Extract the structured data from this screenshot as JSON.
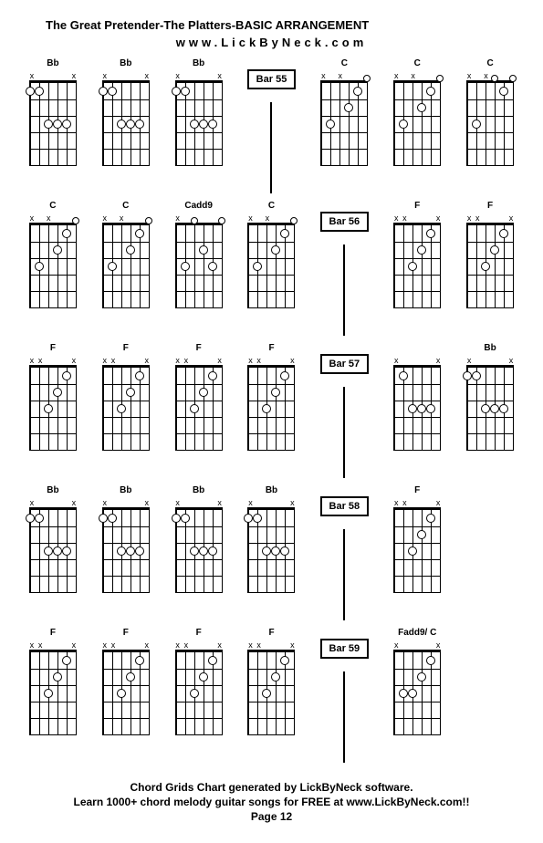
{
  "title": "The Great Pretender-The Platters-BASIC ARRANGEMENT",
  "url": "www.LickByNeck.com",
  "footer1": "Chord Grids Chart generated by LickByNeck software.",
  "footer2": "Learn 1000+ chord melody guitar songs for FREE at www.LickByNeck.com!!",
  "page": "Page 12",
  "rows": [
    {
      "bar": "Bar 55",
      "barCol": 3,
      "cells": [
        {
          "type": "chord",
          "label": "Bb",
          "muted": [
            "x",
            "",
            "",
            "",
            "",
            "x"
          ],
          "fingers": [
            {
              "s": 1,
              "f": 1
            },
            {
              "s": 0,
              "f": 1
            },
            {
              "s": 2,
              "f": 3
            },
            {
              "s": 3,
              "f": 3
            },
            {
              "s": 4,
              "f": 3
            }
          ]
        },
        {
          "type": "chord",
          "label": "Bb",
          "muted": [
            "x",
            "",
            "",
            "",
            "",
            "x"
          ],
          "fingers": [
            {
              "s": 1,
              "f": 1
            },
            {
              "s": 0,
              "f": 1
            },
            {
              "s": 2,
              "f": 3
            },
            {
              "s": 3,
              "f": 3
            },
            {
              "s": 4,
              "f": 3
            }
          ]
        },
        {
          "type": "chord",
          "label": "Bb",
          "muted": [
            "x",
            "",
            "",
            "",
            "",
            "x"
          ],
          "fingers": [
            {
              "s": 1,
              "f": 1
            },
            {
              "s": 0,
              "f": 1
            },
            {
              "s": 2,
              "f": 3
            },
            {
              "s": 3,
              "f": 3
            },
            {
              "s": 4,
              "f": 3
            }
          ]
        },
        {
          "type": "bar"
        },
        {
          "type": "chord",
          "label": "C",
          "muted": [
            "x",
            "",
            "x",
            "",
            "",
            ""
          ],
          "fingers": [
            {
              "s": 4,
              "f": 1
            },
            {
              "s": 3,
              "f": 2
            },
            {
              "s": 1,
              "f": 3
            }
          ],
          "opens": [
            5
          ]
        },
        {
          "type": "chord",
          "label": "C",
          "muted": [
            "x",
            "",
            "x",
            "",
            "",
            ""
          ],
          "fingers": [
            {
              "s": 4,
              "f": 1
            },
            {
              "s": 3,
              "f": 2
            },
            {
              "s": 1,
              "f": 3
            }
          ],
          "opens": [
            5
          ]
        },
        {
          "type": "chord",
          "label": "C",
          "muted": [
            "x",
            "",
            "x",
            "",
            "",
            ""
          ],
          "fingers": [
            {
              "s": 4,
              "f": 1
            },
            {
              "s": 1,
              "f": 3
            }
          ],
          "opens": [
            3,
            5
          ]
        }
      ]
    },
    {
      "bar": "Bar 56",
      "barCol": 4,
      "cells": [
        {
          "type": "chord",
          "label": "C",
          "muted": [
            "x",
            "",
            "x",
            "",
            "",
            ""
          ],
          "fingers": [
            {
              "s": 4,
              "f": 1
            },
            {
              "s": 3,
              "f": 2
            },
            {
              "s": 1,
              "f": 3
            }
          ],
          "opens": [
            5
          ]
        },
        {
          "type": "chord",
          "label": "C",
          "muted": [
            "x",
            "",
            "x",
            "",
            "",
            ""
          ],
          "fingers": [
            {
              "s": 4,
              "f": 1
            },
            {
              "s": 3,
              "f": 2
            },
            {
              "s": 1,
              "f": 3
            }
          ],
          "opens": [
            5
          ]
        },
        {
          "type": "chord",
          "label": "Cadd9",
          "muted": [
            "x",
            "",
            "",
            "",
            "",
            ""
          ],
          "fingers": [
            {
              "s": 3,
              "f": 2
            },
            {
              "s": 1,
              "f": 3
            },
            {
              "s": 4,
              "f": 3
            }
          ],
          "opens": [
            2,
            5
          ]
        },
        {
          "type": "chord",
          "label": "C",
          "muted": [
            "x",
            "",
            "x",
            "",
            "",
            ""
          ],
          "fingers": [
            {
              "s": 4,
              "f": 1
            },
            {
              "s": 3,
              "f": 2
            },
            {
              "s": 1,
              "f": 3
            }
          ],
          "opens": [
            5
          ]
        },
        {
          "type": "bar"
        },
        {
          "type": "chord",
          "label": "F",
          "muted": [
            "x",
            "x",
            "",
            "",
            "",
            "x"
          ],
          "fingers": [
            {
              "s": 4,
              "f": 1
            },
            {
              "s": 3,
              "f": 2
            },
            {
              "s": 2,
              "f": 3
            }
          ]
        },
        {
          "type": "chord",
          "label": "F",
          "muted": [
            "x",
            "x",
            "",
            "",
            "",
            "x"
          ],
          "fingers": [
            {
              "s": 4,
              "f": 1
            },
            {
              "s": 3,
              "f": 2
            },
            {
              "s": 2,
              "f": 3
            }
          ]
        }
      ]
    },
    {
      "bar": "Bar 57",
      "barCol": 4,
      "cells": [
        {
          "type": "chord",
          "label": "F",
          "muted": [
            "x",
            "x",
            "",
            "",
            "",
            "x"
          ],
          "fingers": [
            {
              "s": 4,
              "f": 1
            },
            {
              "s": 3,
              "f": 2
            },
            {
              "s": 2,
              "f": 3
            }
          ]
        },
        {
          "type": "chord",
          "label": "F",
          "muted": [
            "x",
            "x",
            "",
            "",
            "",
            "x"
          ],
          "fingers": [
            {
              "s": 4,
              "f": 1
            },
            {
              "s": 3,
              "f": 2
            },
            {
              "s": 2,
              "f": 3
            }
          ]
        },
        {
          "type": "chord",
          "label": "F",
          "muted": [
            "x",
            "x",
            "",
            "",
            "",
            "x"
          ],
          "fingers": [
            {
              "s": 4,
              "f": 1
            },
            {
              "s": 3,
              "f": 2
            },
            {
              "s": 2,
              "f": 3
            }
          ]
        },
        {
          "type": "chord",
          "label": "F",
          "muted": [
            "x",
            "x",
            "",
            "",
            "",
            "x"
          ],
          "fingers": [
            {
              "s": 4,
              "f": 1
            },
            {
              "s": 3,
              "f": 2
            },
            {
              "s": 2,
              "f": 3
            }
          ]
        },
        {
          "type": "bar"
        },
        {
          "type": "chord",
          "label": "",
          "muted": [
            "x",
            "",
            "",
            "",
            "",
            "x"
          ],
          "fingers": [
            {
              "s": 1,
              "f": 1
            },
            {
              "s": 2,
              "f": 3
            },
            {
              "s": 3,
              "f": 3
            },
            {
              "s": 4,
              "f": 3
            }
          ]
        },
        {
          "type": "chord",
          "label": "Bb",
          "muted": [
            "x",
            "",
            "",
            "",
            "",
            "x"
          ],
          "fingers": [
            {
              "s": 1,
              "f": 1
            },
            {
              "s": 0,
              "f": 1
            },
            {
              "s": 2,
              "f": 3
            },
            {
              "s": 3,
              "f": 3
            },
            {
              "s": 4,
              "f": 3
            }
          ]
        }
      ]
    },
    {
      "bar": "Bar 58",
      "barCol": 4,
      "cells": [
        {
          "type": "chord",
          "label": "Bb",
          "muted": [
            "x",
            "",
            "",
            "",
            "",
            "x"
          ],
          "fingers": [
            {
              "s": 1,
              "f": 1
            },
            {
              "s": 0,
              "f": 1
            },
            {
              "s": 2,
              "f": 3
            },
            {
              "s": 3,
              "f": 3
            },
            {
              "s": 4,
              "f": 3
            }
          ]
        },
        {
          "type": "chord",
          "label": "Bb",
          "muted": [
            "x",
            "",
            "",
            "",
            "",
            "x"
          ],
          "fingers": [
            {
              "s": 1,
              "f": 1
            },
            {
              "s": 0,
              "f": 1
            },
            {
              "s": 2,
              "f": 3
            },
            {
              "s": 3,
              "f": 3
            },
            {
              "s": 4,
              "f": 3
            }
          ]
        },
        {
          "type": "chord",
          "label": "Bb",
          "muted": [
            "x",
            "",
            "",
            "",
            "",
            "x"
          ],
          "fingers": [
            {
              "s": 1,
              "f": 1
            },
            {
              "s": 0,
              "f": 1
            },
            {
              "s": 2,
              "f": 3
            },
            {
              "s": 3,
              "f": 3
            },
            {
              "s": 4,
              "f": 3
            }
          ]
        },
        {
          "type": "chord",
          "label": "Bb",
          "muted": [
            "x",
            "",
            "",
            "",
            "",
            "x"
          ],
          "fingers": [
            {
              "s": 1,
              "f": 1
            },
            {
              "s": 0,
              "f": 1
            },
            {
              "s": 2,
              "f": 3
            },
            {
              "s": 3,
              "f": 3
            },
            {
              "s": 4,
              "f": 3
            }
          ]
        },
        {
          "type": "bar"
        },
        {
          "type": "chord",
          "label": "F",
          "muted": [
            "x",
            "x",
            "",
            "",
            "",
            "x"
          ],
          "fingers": [
            {
              "s": 4,
              "f": 1
            },
            {
              "s": 3,
              "f": 2
            },
            {
              "s": 2,
              "f": 3
            }
          ]
        },
        {
          "type": "empty"
        }
      ]
    },
    {
      "bar": "Bar 59",
      "barCol": 4,
      "cells": [
        {
          "type": "chord",
          "label": "F",
          "muted": [
            "x",
            "x",
            "",
            "",
            "",
            "x"
          ],
          "fingers": [
            {
              "s": 4,
              "f": 1
            },
            {
              "s": 3,
              "f": 2
            },
            {
              "s": 2,
              "f": 3
            }
          ]
        },
        {
          "type": "chord",
          "label": "F",
          "muted": [
            "x",
            "x",
            "",
            "",
            "",
            "x"
          ],
          "fingers": [
            {
              "s": 4,
              "f": 1
            },
            {
              "s": 3,
              "f": 2
            },
            {
              "s": 2,
              "f": 3
            }
          ]
        },
        {
          "type": "chord",
          "label": "F",
          "muted": [
            "x",
            "x",
            "",
            "",
            "",
            "x"
          ],
          "fingers": [
            {
              "s": 4,
              "f": 1
            },
            {
              "s": 3,
              "f": 2
            },
            {
              "s": 2,
              "f": 3
            }
          ]
        },
        {
          "type": "chord",
          "label": "F",
          "muted": [
            "x",
            "x",
            "",
            "",
            "",
            "x"
          ],
          "fingers": [
            {
              "s": 4,
              "f": 1
            },
            {
              "s": 3,
              "f": 2
            },
            {
              "s": 2,
              "f": 3
            }
          ]
        },
        {
          "type": "bar"
        },
        {
          "type": "chord",
          "label": "Fadd9/ C",
          "muted": [
            "x",
            "",
            "",
            "",
            "",
            "x"
          ],
          "fingers": [
            {
              "s": 4,
              "f": 1
            },
            {
              "s": 3,
              "f": 2
            },
            {
              "s": 1,
              "f": 3
            },
            {
              "s": 2,
              "f": 3
            }
          ]
        },
        {
          "type": "empty"
        }
      ]
    }
  ],
  "style": {
    "strings": 6,
    "frets": 5,
    "diagram_width": 50,
    "diagram_height": 90,
    "colors": {
      "bg": "#ffffff",
      "grid": "#000000",
      "finger_fill": "#ffffff",
      "finger_border": "#000000",
      "text": "#000000"
    },
    "font_sizes": {
      "title": 13,
      "chord_label": 10,
      "footer": 12,
      "bar": 11
    }
  }
}
